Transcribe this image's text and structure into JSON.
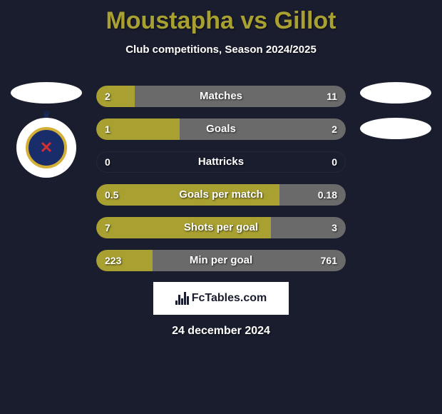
{
  "header": {
    "title": "Moustapha vs Gillot",
    "subtitle": "Club competitions, Season 2024/2025",
    "title_color": "#a8a030",
    "subtitle_color": "#ffffff"
  },
  "colors": {
    "background": "#1a1d2e",
    "bar_left": "#a8a030",
    "bar_right": "#6a6a6a",
    "text": "#ffffff"
  },
  "stats": [
    {
      "label": "Matches",
      "left_val": "2",
      "right_val": "11",
      "left_pct": 15.4,
      "right_pct": 84.6
    },
    {
      "label": "Goals",
      "left_val": "1",
      "right_val": "2",
      "left_pct": 33.3,
      "right_pct": 66.7
    },
    {
      "label": "Hattricks",
      "left_val": "0",
      "right_val": "0",
      "left_pct": 0,
      "right_pct": 0
    },
    {
      "label": "Goals per match",
      "left_val": "0.5",
      "right_val": "0.18",
      "left_pct": 73.5,
      "right_pct": 26.5
    },
    {
      "label": "Shots per goal",
      "left_val": "7",
      "right_val": "3",
      "left_pct": 70.0,
      "right_pct": 30.0
    },
    {
      "label": "Min per goal",
      "left_val": "223",
      "right_val": "761",
      "left_pct": 22.7,
      "right_pct": 77.3
    }
  ],
  "brand": {
    "text": "FcTables.com"
  },
  "date": "24 december 2024",
  "badge": {
    "outer_ring": "#d4af37",
    "inner_bg": "#1a2d6b",
    "accent": "#d43030"
  }
}
